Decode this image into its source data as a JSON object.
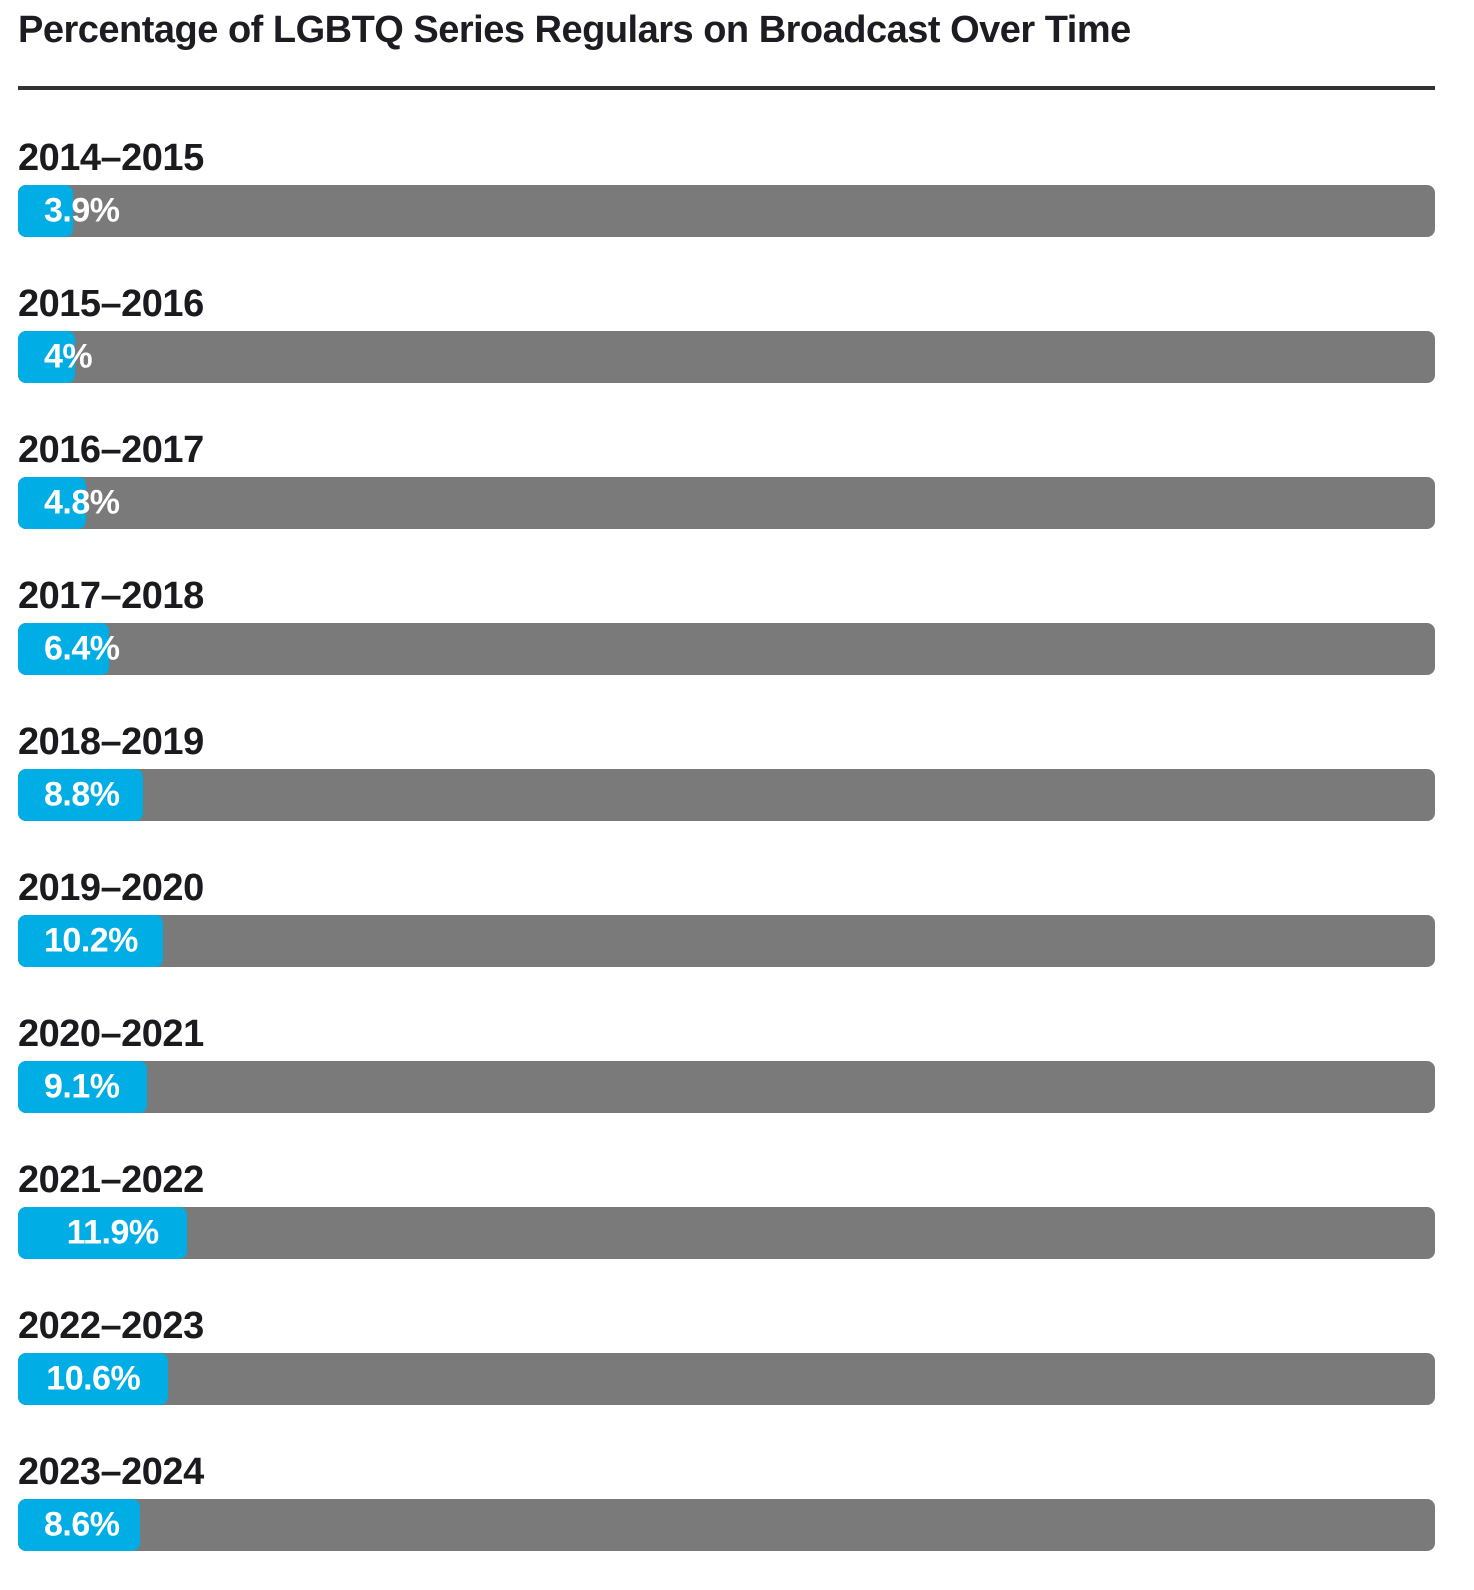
{
  "title": "Percentage of LGBTQ Series Regulars on Broadcast Over Time",
  "colors": {
    "accent": "#00ade4",
    "track": "#7a7a7a",
    "text": "#1c1c22",
    "divider": "#333333",
    "value_text": "#ffffff"
  },
  "chart_data": {
    "type": "bar",
    "orientation": "horizontal",
    "title": "Percentage of LGBTQ Series Regulars on Broadcast Over Time",
    "categories": [
      "2014–2015",
      "2015–2016",
      "2016–2017",
      "2017–2018",
      "2018–2019",
      "2019–2020",
      "2020–2021",
      "2021–2022",
      "2022–2023",
      "2023–2024"
    ],
    "values": [
      3.9,
      4,
      4.8,
      6.4,
      8.8,
      10.2,
      9.1,
      11.9,
      10.6,
      8.6
    ],
    "value_labels": [
      "3.9%",
      "4%",
      "4.8%",
      "6.4%",
      "8.8%",
      "10.2%",
      "9.1%",
      "11.9%",
      "10.6%",
      "8.6%"
    ],
    "xlabel": "",
    "ylabel": "",
    "xlim": [
      0,
      100
    ],
    "grid": false,
    "legend": false
  }
}
